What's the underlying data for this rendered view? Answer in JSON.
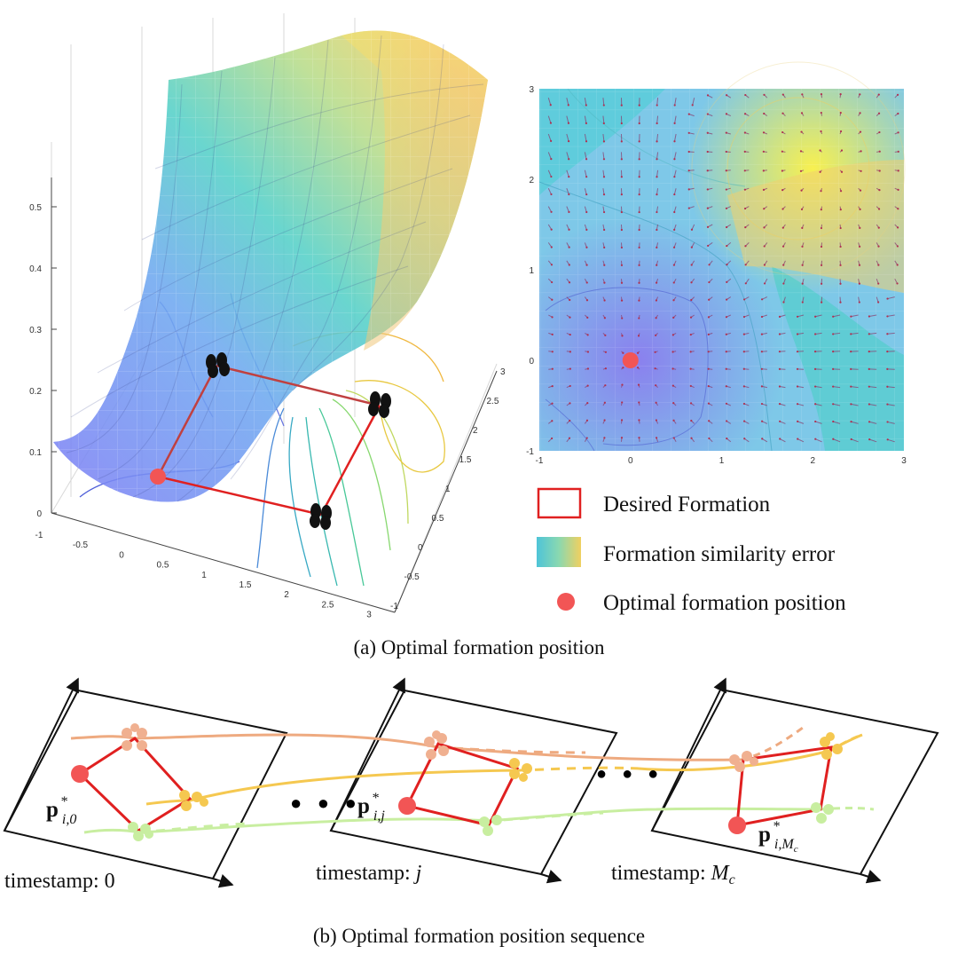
{
  "surface_plot": {
    "z_ticks": [
      "0",
      "0.1",
      "0.2",
      "0.3",
      "0.4",
      "0.5"
    ],
    "x_ticks": [
      "-1",
      "-0.5",
      "0",
      "0.5",
      "1",
      "1.5",
      "2",
      "2.5",
      "3"
    ],
    "y_ticks": [
      "-1",
      "-0.5",
      "0",
      "0.5",
      "1",
      "1.5",
      "2",
      "2.5",
      "3"
    ]
  },
  "heatmap_plot": {
    "x_ticks": [
      "-1",
      "0",
      "1",
      "2",
      "3"
    ],
    "y_ticks": [
      "3",
      "2",
      "1",
      "0",
      "-1"
    ],
    "optimal_point": {
      "x": 0,
      "y": 0
    }
  },
  "legend": {
    "desired": "Desired Formation",
    "error": "Formation similarity error",
    "optimal": "Optimal formation position"
  },
  "captions": {
    "a": "(a) Optimal formation position",
    "b": "(b) Optimal formation position sequence"
  },
  "sequence": {
    "dots": "● ● ●",
    "panels": [
      {
        "label": "timestamp: ",
        "var": "0",
        "p_main": "p",
        "p_sub": "i,0",
        "p_sup": "*"
      },
      {
        "label": "timestamp: ",
        "var": "j",
        "p_main": "p",
        "p_sub": "i,j",
        "p_sup": "*"
      },
      {
        "label": "timestamp: ",
        "var": "M",
        "var_sub": "c",
        "p_main": "p",
        "p_sub": "i,M",
        "p_subsub": "c",
        "p_sup": "*"
      }
    ]
  },
  "colors": {
    "formation": "#e02020",
    "optimal": "#f25555",
    "traj_orange": "#eeaa80",
    "traj_yellow": "#f5c850",
    "traj_green": "#c8eea0"
  }
}
